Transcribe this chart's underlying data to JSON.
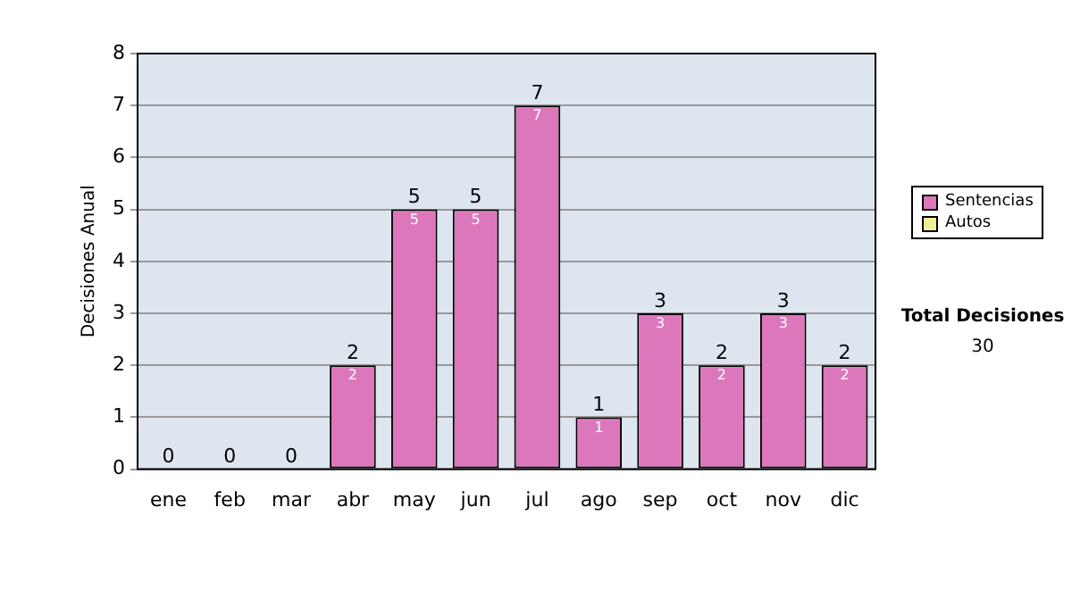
{
  "chart_data": {
    "type": "bar",
    "ylabel": "Decisiones Anual",
    "categories": [
      "ene",
      "feb",
      "mar",
      "abr",
      "may",
      "jun",
      "jul",
      "ago",
      "sep",
      "oct",
      "nov",
      "dic"
    ],
    "series": [
      {
        "name": "Sentencias",
        "color": "#dd77bb",
        "values": [
          0,
          0,
          0,
          2,
          5,
          5,
          7,
          1,
          3,
          2,
          3,
          2
        ],
        "value_labels": [
          null,
          null,
          null,
          "2",
          "5",
          "5",
          "7",
          "1",
          "3",
          "2",
          "3",
          "2"
        ]
      },
      {
        "name": "Autos",
        "color": "#eeee99",
        "values": [
          0,
          0,
          0,
          0,
          0,
          0,
          0,
          0,
          0,
          0,
          0,
          0
        ]
      }
    ],
    "stacked": true,
    "totals": [
      "0",
      "0",
      "0",
      "2",
      "5",
      "5",
      "7",
      "1",
      "3",
      "2",
      "3",
      "2"
    ],
    "ylim": [
      0,
      8
    ],
    "yticks": [
      0,
      1,
      2,
      3,
      4,
      5,
      6,
      7,
      8
    ],
    "grid": "y",
    "legend": "right",
    "annotations": [
      "Total Decisiones",
      "30"
    ]
  }
}
